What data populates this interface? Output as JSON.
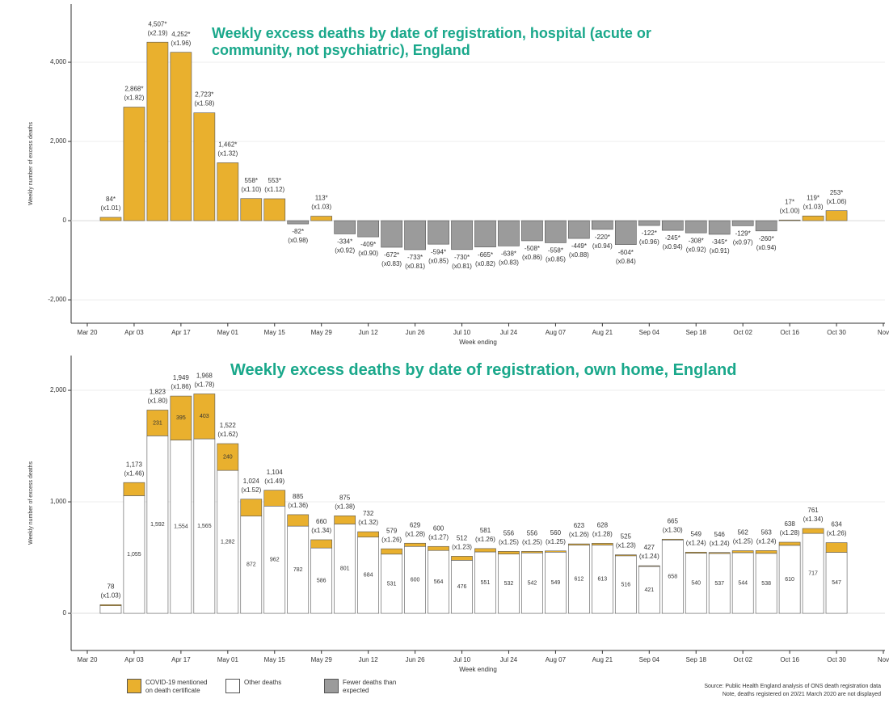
{
  "chart_data": [
    {
      "type": "bar",
      "title": "Weekly excess deaths by date of registration, hospital (acute or community, not psychiatric), England",
      "ylabel": "Weekly number of excess deaths",
      "xlabel": "Week ending",
      "categories": [
        "Mar 20",
        null,
        "Apr 03",
        null,
        "Apr 17",
        null,
        "May 01",
        null,
        "May 15",
        null,
        "May 29",
        null,
        "Jun 12",
        null,
        "Jun 26",
        null,
        "Jul 10",
        null,
        "Jul 24",
        null,
        "Aug 07",
        null,
        "Aug 21",
        null,
        "Sep 04",
        null,
        "Sep 18",
        null,
        "Oct 02",
        null,
        "Oct 16",
        null,
        "Oct 30",
        null,
        "Nov"
      ],
      "values": [
        null,
        84,
        2868,
        4507,
        4252,
        2723,
        1462,
        558,
        553,
        -82,
        113,
        -334,
        -409,
        -672,
        -733,
        -594,
        -730,
        -665,
        -638,
        -508,
        -558,
        -449,
        -220,
        -604,
        -122,
        -245,
        -308,
        -345,
        -129,
        -260,
        17,
        119,
        253,
        null,
        null
      ],
      "value_labels": [
        null,
        "84*",
        "2,868*",
        "4,507*",
        "4,252*",
        "2,723*",
        "1,462*",
        "558*",
        "553*",
        "-82*",
        "113*",
        "-334*",
        "-409*",
        "-672*",
        "-733*",
        "-594*",
        "-730*",
        "-665*",
        "-638*",
        "-508*",
        "-558*",
        "-449*",
        "-220*",
        "-604*",
        "-122*",
        "-245*",
        "-308*",
        "-345*",
        "-129*",
        "-260*",
        "17*",
        "119*",
        "253*",
        null,
        null
      ],
      "ratio_labels": [
        null,
        "(x1.01)",
        "(x1.82)",
        "(x2.19)",
        "(x1.96)",
        "(x1.58)",
        "(x1.32)",
        "(x1.10)",
        "(x1.12)",
        "(x0.98)",
        "(x1.03)",
        "(x0.92)",
        "(x0.90)",
        "(x0.83)",
        "(x0.81)",
        "(x0.85)",
        "(x0.81)",
        "(x0.82)",
        "(x0.83)",
        "(x0.86)",
        "(x0.85)",
        "(x0.88)",
        "(x0.94)",
        "(x0.84)",
        "(x0.96)",
        "(x0.94)",
        "(x0.92)",
        "(x0.91)",
        "(x0.97)",
        "(x0.94)",
        "(x1.00)",
        "(x1.03)",
        "(x1.06)",
        null,
        null
      ],
      "color": "#e9b02e",
      "negative_color": "#9b9b9b",
      "ylim": [
        -2590,
        5470
      ],
      "yticks": [
        {
          "value": -2000,
          "label": "-2,000"
        },
        0,
        {
          "value": 2000,
          "label": "2,000"
        },
        {
          "value": 4000,
          "label": "4,000"
        }
      ],
      "grid": true
    },
    {
      "type": "stacked_bar",
      "title": "Weekly excess deaths by date of registration, own home, England",
      "ylabel": "Weekly number of excess deaths",
      "xlabel": "Week ending",
      "categories": [
        "Mar 20",
        null,
        "Apr 03",
        null,
        "Apr 17",
        null,
        "May 01",
        null,
        "May 15",
        null,
        "May 29",
        null,
        "Jun 12",
        null,
        "Jun 26",
        null,
        "Jul 10",
        null,
        "Jul 24",
        null,
        "Aug 07",
        null,
        "Aug 21",
        null,
        "Sep 04",
        null,
        "Sep 18",
        null,
        "Oct 02",
        null,
        "Oct 16",
        null,
        "Oct 30",
        null,
        "Nov"
      ],
      "series": [
        {
          "name": "Other deaths",
          "color": "#ffffff",
          "values": [
            null,
            68,
            1055,
            1592,
            1554,
            1565,
            1282,
            872,
            962,
            782,
            586,
            801,
            684,
            531,
            600,
            564,
            476,
            551,
            532,
            542,
            549,
            612,
            613,
            516,
            421,
            658,
            540,
            537,
            544,
            538,
            610,
            717,
            547,
            null,
            null
          ],
          "value_labels": [
            null,
            null,
            "1,055",
            "1,592",
            "1,554",
            "1,565",
            "1,282",
            "872",
            "962",
            "782",
            "586",
            "801",
            "684",
            "531",
            "600",
            "564",
            "476",
            "551",
            "532",
            "542",
            "549",
            "612",
            "613",
            "516",
            "421",
            "658",
            "540",
            "537",
            "544",
            "538",
            "610",
            "717",
            "547",
            null,
            null
          ]
        },
        {
          "name": "COVID-19 mentioned on death certificate",
          "color": "#e9b02e",
          "values": [
            null,
            10,
            118,
            231,
            395,
            403,
            240,
            152,
            142,
            103,
            74,
            74,
            48,
            48,
            29,
            36,
            36,
            30,
            24,
            14,
            11,
            11,
            15,
            9,
            6,
            7,
            9,
            9,
            18,
            25,
            28,
            44,
            87,
            null,
            null
          ],
          "value_labels": [
            null,
            null,
            null,
            "231",
            "395",
            "403",
            "240",
            null,
            null,
            null,
            null,
            null,
            null,
            null,
            null,
            null,
            null,
            null,
            null,
            null,
            null,
            null,
            null,
            null,
            null,
            null,
            null,
            null,
            null,
            null,
            null,
            null,
            null,
            null,
            null
          ]
        }
      ],
      "total_labels": [
        null,
        "78",
        "1,173",
        "1,823",
        "1,949",
        "1,968",
        "1,522",
        "1,024",
        "1,104",
        "885",
        "660",
        "875",
        "732",
        "579",
        "629",
        "600",
        "512",
        "581",
        "556",
        "556",
        "560",
        "623",
        "628",
        "525",
        "427",
        "665",
        "549",
        "546",
        "562",
        "563",
        "638",
        "761",
        "634",
        null,
        null
      ],
      "ratio_labels": [
        null,
        "(x1.03)",
        "(x1.46)",
        "(x1.80)",
        "(x1.86)",
        "(x1.78)",
        "(x1.62)",
        "(x1.52)",
        "(x1.49)",
        "(x1.36)",
        "(x1.34)",
        "(x1.38)",
        "(x1.32)",
        "(x1.26)",
        "(x1.28)",
        "(x1.27)",
        "(x1.23)",
        "(x1.26)",
        "(x1.25)",
        "(x1.25)",
        "(x1.25)",
        "(x1.26)",
        "(x1.28)",
        "(x1.23)",
        "(x1.24)",
        "(x1.30)",
        "(x1.24)",
        "(x1.24)",
        "(x1.25)",
        "(x1.24)",
        "(x1.28)",
        "(x1.34)",
        "(x1.26)",
        null,
        null
      ],
      "ylim": [
        -333,
        2312
      ],
      "yticks": [
        0,
        {
          "value": 1000,
          "label": "1,000"
        },
        {
          "value": 2000,
          "label": "2,000"
        }
      ],
      "grid": true
    }
  ],
  "legend": [
    {
      "name": "COVID-19 mentioned on death certificate",
      "color": "#e9b02e"
    },
    {
      "name": "Other deaths",
      "color": "#ffffff"
    },
    {
      "name": "Fewer deaths than expected",
      "color": "#9b9b9b"
    }
  ],
  "source": "Source: Public Health England analysis of ONS death registration data",
  "note": "Note, deaths registered on 20/21 March 2020 are not displayed"
}
